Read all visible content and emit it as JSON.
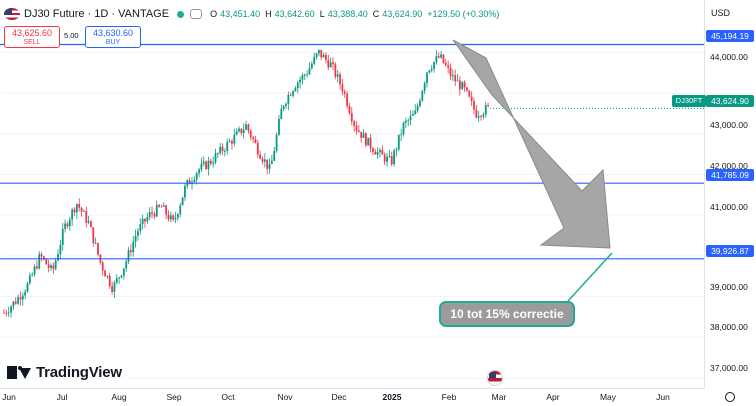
{
  "header": {
    "title": "DJ30 Future · 1D · VANTAGE",
    "ohlc": [
      {
        "k": "O",
        "v": "43,451.40"
      },
      {
        "k": "H",
        "v": "43,642.60"
      },
      {
        "k": "L",
        "v": "43,388.40"
      },
      {
        "k": "C",
        "v": "43,624.90"
      }
    ],
    "change": "+129.50 (+0.30%)"
  },
  "trade": {
    "sell_price": "43,625.60",
    "sell_label": "SELL",
    "buy_price": "43,630.60",
    "buy_label": "BUY",
    "spread": "5.00"
  },
  "axis": {
    "currency": "USD",
    "y_ticks": [
      "44,000.00",
      "43,000.00",
      "42,000.00",
      "41,000.00",
      "39,000.00",
      "38,000.00",
      "37,000.00"
    ],
    "x_ticks": [
      {
        "label": "Jun",
        "bold": false
      },
      {
        "label": "Jul",
        "bold": false
      },
      {
        "label": "Aug",
        "bold": false
      },
      {
        "label": "Sep",
        "bold": false
      },
      {
        "label": "Oct",
        "bold": false
      },
      {
        "label": "Nov",
        "bold": false
      },
      {
        "label": "Dec",
        "bold": false
      },
      {
        "label": "2025",
        "bold": true
      },
      {
        "label": "Feb",
        "bold": false
      },
      {
        "label": "Mar",
        "bold": false
      },
      {
        "label": "Apr",
        "bold": false
      },
      {
        "label": "May",
        "bold": false
      },
      {
        "label": "Jun",
        "bold": false
      }
    ]
  },
  "levels": {
    "resistance": "45,194.19",
    "support_1": "41,785.09",
    "support_2": "39,926.87",
    "symbol": "DJ30FT",
    "current": "43,624.90"
  },
  "annotation": {
    "callout": "10 tot 15% correctie"
  },
  "brand": {
    "name": "TradingView"
  },
  "colors": {
    "up": "#089981",
    "down": "#f23645",
    "line": "#2962ff",
    "arrow": "#a6a6a6"
  },
  "chart_data": {
    "type": "candlestick",
    "instrument": "DJ30 Future",
    "timeframe": "1D",
    "ylim": [
      36800,
      45600
    ],
    "anchors": [
      [
        "Jun",
        38600
      ],
      [
        "Jun",
        38900
      ],
      [
        "Jul",
        39300
      ],
      [
        "Jul",
        40000
      ],
      [
        "Jul",
        39600
      ],
      [
        "Jul",
        40700
      ],
      [
        "Jul",
        41300
      ],
      [
        "Aug",
        40800
      ],
      [
        "Aug",
        39800
      ],
      [
        "Aug",
        39200
      ],
      [
        "Aug",
        39800
      ],
      [
        "Aug",
        40600
      ],
      [
        "Aug",
        41000
      ],
      [
        "Sep",
        41200
      ],
      [
        "Sep",
        40800
      ],
      [
        "Sep",
        41700
      ],
      [
        "Sep",
        42100
      ],
      [
        "Oct",
        42300
      ],
      [
        "Oct",
        42600
      ],
      [
        "Oct",
        42900
      ],
      [
        "Oct",
        43200
      ],
      [
        "Oct",
        42600
      ],
      [
        "Nov",
        42100
      ],
      [
        "Nov",
        43700
      ],
      [
        "Nov",
        44200
      ],
      [
        "Nov",
        44500
      ],
      [
        "Dec",
        45000
      ],
      [
        "Dec",
        44700
      ],
      [
        "Dec",
        44100
      ],
      [
        "Dec",
        43200
      ],
      [
        "Dec",
        42800
      ],
      [
        "2025",
        42500
      ],
      [
        "2025",
        42300
      ],
      [
        "2025",
        43200
      ],
      [
        "2025",
        43500
      ],
      [
        "Feb",
        44600
      ],
      [
        "Feb",
        44900
      ],
      [
        "Feb",
        44400
      ],
      [
        "Feb",
        44100
      ],
      [
        "Mar",
        43500
      ],
      [
        "Mar",
        43625
      ]
    ],
    "levels": [
      45194.19,
      41785.09,
      39926.87
    ],
    "current_close": 43624.9
  }
}
